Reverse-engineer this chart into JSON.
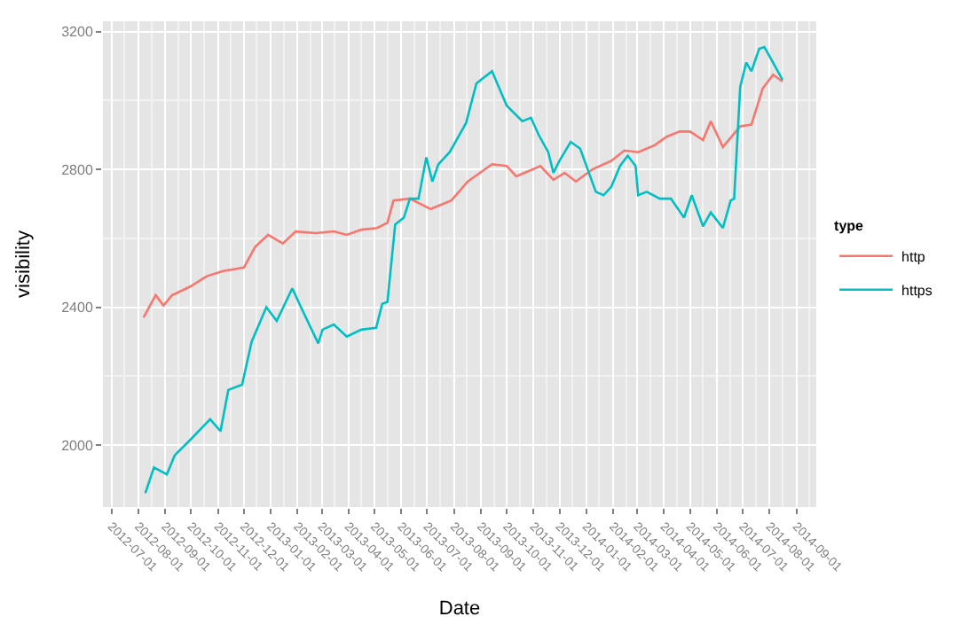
{
  "chart_data": {
    "type": "line",
    "xlabel": "Date",
    "ylabel": "visibility",
    "legend_title": "type",
    "legend": "right",
    "grid": true,
    "marker": "none",
    "line_style": "solid",
    "xlim": [
      "2012-06-21",
      "2014-09-24"
    ],
    "ylim": [
      1820,
      3230
    ],
    "xticks": [
      "2012-07-01",
      "2012-08-01",
      "2012-09-01",
      "2012-10-01",
      "2012-11-01",
      "2012-12-01",
      "2013-01-01",
      "2013-02-01",
      "2013-03-01",
      "2013-04-01",
      "2013-05-01",
      "2013-06-01",
      "2013-07-01",
      "2013-08-01",
      "2013-09-01",
      "2013-10-01",
      "2013-11-01",
      "2013-12-01",
      "2014-01-01",
      "2014-02-01",
      "2014-03-01",
      "2014-04-01",
      "2014-05-01",
      "2014-06-01",
      "2014-07-01",
      "2014-08-01",
      "2014-09-01"
    ],
    "yticks": [
      2000,
      2400,
      2800,
      3200
    ],
    "series": [
      {
        "name": "http",
        "color": "#f8766d",
        "x": [
          "2012-08-07",
          "2012-08-21",
          "2012-08-30",
          "2012-09-09",
          "2012-09-30",
          "2012-10-19",
          "2012-11-07",
          "2012-12-01",
          "2012-12-14",
          "2012-12-29",
          "2013-01-15",
          "2013-01-30",
          "2013-02-22",
          "2013-03-15",
          "2013-03-30",
          "2013-04-16",
          "2013-05-04",
          "2013-05-16",
          "2013-05-23",
          "2013-06-11",
          "2013-07-05",
          "2013-07-29",
          "2013-08-17",
          "2013-09-14",
          "2013-10-01",
          "2013-10-12",
          "2013-11-09",
          "2013-11-24",
          "2013-12-07",
          "2013-12-20",
          "2014-01-08",
          "2014-01-30",
          "2014-02-14",
          "2014-03-02",
          "2014-03-21",
          "2014-04-04",
          "2014-04-19",
          "2014-05-01",
          "2014-05-16",
          "2014-05-25",
          "2014-06-08",
          "2014-06-23",
          "2014-06-28",
          "2014-07-11",
          "2014-07-24",
          "2014-08-05",
          "2014-08-16"
        ],
        "values": [
          2370,
          2435,
          2405,
          2435,
          2460,
          2490,
          2505,
          2515,
          2575,
          2610,
          2585,
          2620,
          2615,
          2620,
          2610,
          2625,
          2630,
          2645,
          2710,
          2715,
          2685,
          2710,
          2765,
          2815,
          2810,
          2780,
          2810,
          2770,
          2790,
          2765,
          2800,
          2825,
          2855,
          2850,
          2870,
          2895,
          2910,
          2910,
          2885,
          2940,
          2865,
          2910,
          2925,
          2930,
          3035,
          3075,
          3055
        ]
      },
      {
        "name": "https",
        "color": "#00bfc4",
        "x": [
          "2012-08-09",
          "2012-08-19",
          "2012-09-03",
          "2012-09-12",
          "2012-09-30",
          "2012-10-23",
          "2012-11-04",
          "2012-11-13",
          "2012-11-29",
          "2012-12-10",
          "2012-12-27",
          "2013-01-08",
          "2013-01-26",
          "2013-02-05",
          "2013-02-25",
          "2013-03-02",
          "2013-03-15",
          "2013-03-30",
          "2013-04-16",
          "2013-05-03",
          "2013-05-10",
          "2013-05-16",
          "2013-05-25",
          "2013-06-04",
          "2013-06-11",
          "2013-06-21",
          "2013-06-30",
          "2013-07-07",
          "2013-07-14",
          "2013-07-27",
          "2013-08-15",
          "2013-08-27",
          "2013-09-14",
          "2013-10-01",
          "2013-10-19",
          "2013-10-29",
          "2013-11-07",
          "2013-11-18",
          "2013-11-24",
          "2013-12-01",
          "2013-12-14",
          "2013-12-25",
          "2014-01-12",
          "2014-01-21",
          "2014-01-30",
          "2014-02-09",
          "2014-02-18",
          "2014-02-27",
          "2014-03-02",
          "2014-03-12",
          "2014-03-27",
          "2014-04-09",
          "2014-04-24",
          "2014-05-03",
          "2014-05-16",
          "2014-05-25",
          "2014-06-08",
          "2014-06-17",
          "2014-06-21",
          "2014-06-28",
          "2014-07-05",
          "2014-07-11",
          "2014-07-20",
          "2014-07-26",
          "2014-08-05",
          "2014-08-16"
        ],
        "values": [
          1860,
          1935,
          1915,
          1970,
          2015,
          2075,
          2040,
          2160,
          2175,
          2300,
          2400,
          2360,
          2455,
          2400,
          2295,
          2335,
          2350,
          2315,
          2335,
          2340,
          2410,
          2415,
          2640,
          2660,
          2715,
          2715,
          2835,
          2765,
          2815,
          2850,
          2935,
          3050,
          3085,
          2985,
          2940,
          2950,
          2900,
          2850,
          2790,
          2825,
          2880,
          2860,
          2735,
          2725,
          2750,
          2810,
          2840,
          2810,
          2725,
          2735,
          2715,
          2715,
          2660,
          2725,
          2635,
          2675,
          2630,
          2710,
          2715,
          3040,
          3110,
          3085,
          3150,
          3155,
          3110,
          3060
        ]
      }
    ]
  }
}
